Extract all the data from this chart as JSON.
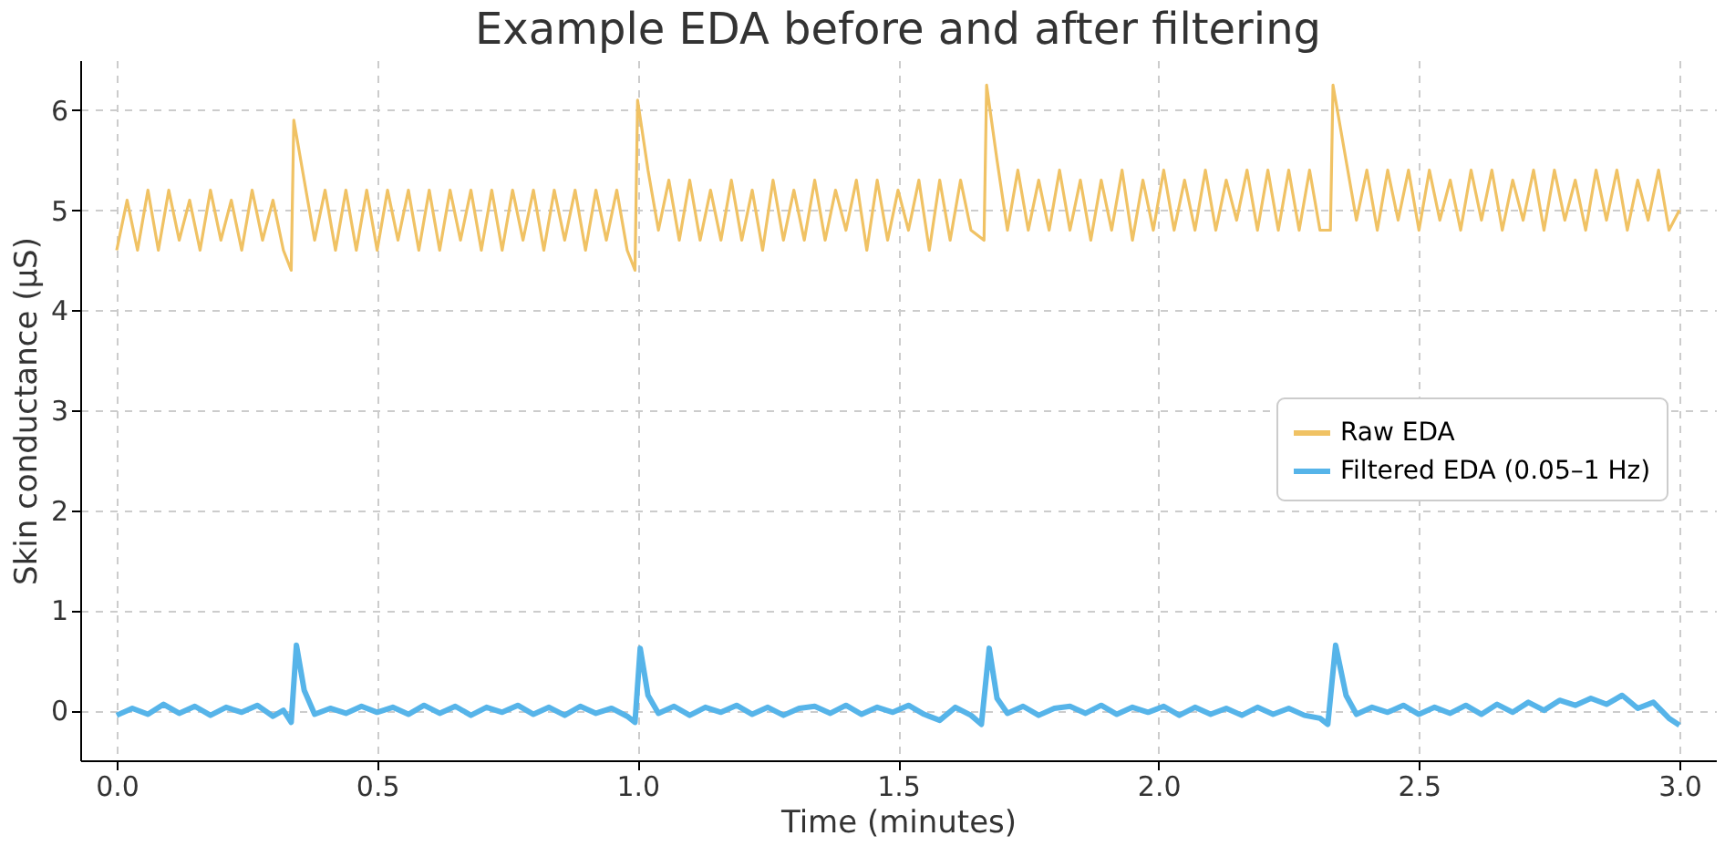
{
  "chart_data": {
    "type": "line",
    "title": "Example EDA before and after filtering",
    "xlabel": "Time (minutes)",
    "ylabel": "Skin conductance (µS)",
    "xlim": [
      -0.07,
      3.07
    ],
    "xticks": [
      {
        "value": 0,
        "label": "0.0"
      },
      0.5,
      {
        "value": 1,
        "label": "1.0"
      },
      1.5,
      {
        "value": 2,
        "label": "2.0"
      },
      2.5,
      {
        "value": 3,
        "label": "3.0"
      }
    ],
    "ylim": [
      -0.5,
      6.5
    ],
    "yticks": [
      0,
      1,
      2,
      3,
      4,
      5,
      6
    ],
    "grid": true,
    "legend": "right",
    "line_style": "solid",
    "series": [
      {
        "name": "Raw EDA",
        "color": "#f0c264",
        "x": [
          0.0,
          0.02,
          0.04,
          0.06,
          0.08,
          0.1,
          0.12,
          0.14,
          0.16,
          0.18,
          0.2,
          0.22,
          0.24,
          0.26,
          0.28,
          0.3,
          0.32,
          0.335,
          0.34,
          0.36,
          0.38,
          0.4,
          0.42,
          0.44,
          0.46,
          0.48,
          0.5,
          0.52,
          0.54,
          0.56,
          0.58,
          0.6,
          0.62,
          0.64,
          0.66,
          0.68,
          0.7,
          0.72,
          0.74,
          0.76,
          0.78,
          0.8,
          0.82,
          0.84,
          0.86,
          0.88,
          0.9,
          0.92,
          0.94,
          0.96,
          0.98,
          0.995,
          1.0,
          1.02,
          1.04,
          1.06,
          1.08,
          1.1,
          1.12,
          1.14,
          1.16,
          1.18,
          1.2,
          1.22,
          1.24,
          1.26,
          1.28,
          1.3,
          1.32,
          1.34,
          1.36,
          1.38,
          1.4,
          1.42,
          1.44,
          1.46,
          1.48,
          1.5,
          1.52,
          1.54,
          1.56,
          1.58,
          1.6,
          1.62,
          1.64,
          1.665,
          1.67,
          1.69,
          1.71,
          1.73,
          1.75,
          1.77,
          1.79,
          1.81,
          1.83,
          1.85,
          1.87,
          1.89,
          1.91,
          1.93,
          1.95,
          1.97,
          1.99,
          2.01,
          2.03,
          2.05,
          2.07,
          2.09,
          2.11,
          2.13,
          2.15,
          2.17,
          2.19,
          2.21,
          2.23,
          2.25,
          2.27,
          2.29,
          2.31,
          2.33,
          2.335,
          2.36,
          2.38,
          2.4,
          2.42,
          2.44,
          2.46,
          2.48,
          2.5,
          2.52,
          2.54,
          2.56,
          2.58,
          2.6,
          2.62,
          2.64,
          2.66,
          2.68,
          2.7,
          2.72,
          2.74,
          2.76,
          2.78,
          2.8,
          2.82,
          2.84,
          2.86,
          2.88,
          2.9,
          2.92,
          2.94,
          2.96,
          2.98,
          3.0
        ],
        "values": [
          4.6,
          5.1,
          4.6,
          5.2,
          4.6,
          5.2,
          4.7,
          5.1,
          4.6,
          5.2,
          4.7,
          5.1,
          4.6,
          5.2,
          4.7,
          5.1,
          4.6,
          4.4,
          5.9,
          5.3,
          4.7,
          5.2,
          4.6,
          5.2,
          4.6,
          5.2,
          4.6,
          5.2,
          4.7,
          5.2,
          4.6,
          5.2,
          4.6,
          5.2,
          4.7,
          5.2,
          4.6,
          5.2,
          4.6,
          5.2,
          4.7,
          5.2,
          4.6,
          5.2,
          4.7,
          5.2,
          4.6,
          5.2,
          4.7,
          5.2,
          4.6,
          4.4,
          6.1,
          5.4,
          4.8,
          5.3,
          4.7,
          5.3,
          4.7,
          5.2,
          4.7,
          5.3,
          4.7,
          5.2,
          4.6,
          5.3,
          4.7,
          5.2,
          4.7,
          5.3,
          4.7,
          5.2,
          4.8,
          5.3,
          4.6,
          5.3,
          4.7,
          5.2,
          4.8,
          5.3,
          4.6,
          5.3,
          4.7,
          5.3,
          4.8,
          4.7,
          6.25,
          5.5,
          4.8,
          5.4,
          4.8,
          5.3,
          4.8,
          5.4,
          4.8,
          5.3,
          4.7,
          5.3,
          4.8,
          5.4,
          4.7,
          5.3,
          4.8,
          5.4,
          4.8,
          5.3,
          4.8,
          5.4,
          4.8,
          5.3,
          4.9,
          5.4,
          4.8,
          5.4,
          4.8,
          5.4,
          4.8,
          5.4,
          4.8,
          4.8,
          6.25,
          5.5,
          4.9,
          5.4,
          4.8,
          5.4,
          4.9,
          5.4,
          4.8,
          5.4,
          4.9,
          5.3,
          4.8,
          5.4,
          4.9,
          5.4,
          4.8,
          5.3,
          4.9,
          5.4,
          4.8,
          5.4,
          4.9,
          5.3,
          4.8,
          5.4,
          4.9,
          5.4,
          4.8,
          5.3,
          4.9,
          5.4,
          4.8,
          5.0
        ]
      },
      {
        "name": "Filtered EDA (0.05–1 Hz)",
        "color": "#56b4e9",
        "x": [
          0.0,
          0.03,
          0.06,
          0.09,
          0.12,
          0.15,
          0.18,
          0.21,
          0.24,
          0.27,
          0.3,
          0.32,
          0.335,
          0.345,
          0.36,
          0.38,
          0.41,
          0.44,
          0.47,
          0.5,
          0.53,
          0.56,
          0.59,
          0.62,
          0.65,
          0.68,
          0.71,
          0.74,
          0.77,
          0.8,
          0.83,
          0.86,
          0.89,
          0.92,
          0.95,
          0.98,
          0.995,
          1.005,
          1.02,
          1.04,
          1.07,
          1.1,
          1.13,
          1.16,
          1.19,
          1.22,
          1.25,
          1.28,
          1.31,
          1.34,
          1.37,
          1.4,
          1.43,
          1.46,
          1.49,
          1.52,
          1.55,
          1.58,
          1.61,
          1.64,
          1.66,
          1.675,
          1.69,
          1.71,
          1.74,
          1.77,
          1.8,
          1.83,
          1.86,
          1.89,
          1.92,
          1.95,
          1.98,
          2.01,
          2.04,
          2.07,
          2.1,
          2.13,
          2.16,
          2.19,
          2.22,
          2.25,
          2.28,
          2.31,
          2.325,
          2.34,
          2.36,
          2.38,
          2.41,
          2.44,
          2.47,
          2.5,
          2.53,
          2.56,
          2.59,
          2.62,
          2.65,
          2.68,
          2.71,
          2.74,
          2.77,
          2.8,
          2.83,
          2.86,
          2.89,
          2.92,
          2.95,
          2.98,
          3.0
        ],
        "values": [
          -0.05,
          0.02,
          -0.04,
          0.06,
          -0.03,
          0.04,
          -0.05,
          0.03,
          -0.02,
          0.05,
          -0.06,
          0.0,
          -0.12,
          0.65,
          0.2,
          -0.04,
          0.02,
          -0.03,
          0.04,
          -0.02,
          0.03,
          -0.04,
          0.05,
          -0.03,
          0.04,
          -0.05,
          0.03,
          -0.02,
          0.05,
          -0.04,
          0.03,
          -0.05,
          0.04,
          -0.03,
          0.02,
          -0.06,
          -0.12,
          0.62,
          0.15,
          -0.03,
          0.04,
          -0.05,
          0.03,
          -0.02,
          0.05,
          -0.04,
          0.03,
          -0.05,
          0.02,
          0.04,
          -0.03,
          0.05,
          -0.04,
          0.03,
          -0.02,
          0.05,
          -0.04,
          -0.1,
          0.03,
          -0.05,
          -0.14,
          0.62,
          0.12,
          -0.03,
          0.04,
          -0.05,
          0.02,
          0.04,
          -0.03,
          0.05,
          -0.04,
          0.03,
          -0.02,
          0.04,
          -0.05,
          0.03,
          -0.04,
          0.02,
          -0.05,
          0.03,
          -0.04,
          0.02,
          -0.05,
          -0.08,
          -0.14,
          0.65,
          0.15,
          -0.04,
          0.03,
          -0.02,
          0.05,
          -0.04,
          0.03,
          -0.03,
          0.05,
          -0.04,
          0.06,
          -0.02,
          0.08,
          0.0,
          0.1,
          0.05,
          0.12,
          0.06,
          0.15,
          0.02,
          0.08,
          -0.08,
          -0.15
        ]
      }
    ]
  }
}
